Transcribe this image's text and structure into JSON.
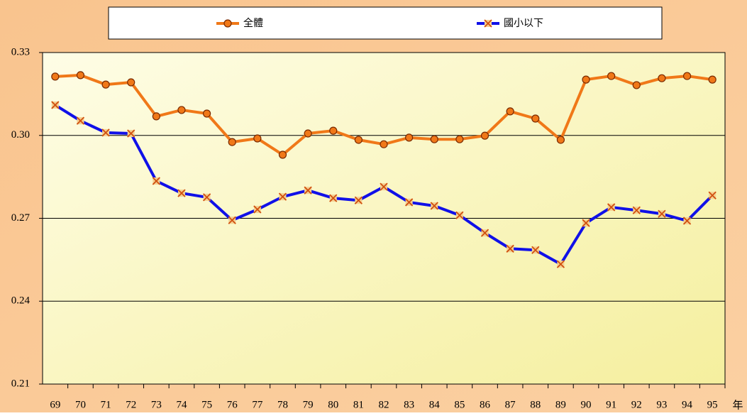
{
  "chart_data": {
    "type": "line",
    "categories": [
      "69",
      "70",
      "71",
      "72",
      "73",
      "74",
      "75",
      "76",
      "77",
      "78",
      "79",
      "80",
      "81",
      "82",
      "83",
      "84",
      "85",
      "86",
      "87",
      "88",
      "89",
      "90",
      "91",
      "92",
      "93",
      "94",
      "95"
    ],
    "x_label": "年",
    "series": [
      {
        "name": "全體",
        "color": "#f07818",
        "marker": "circle",
        "values": [
          0.3213,
          0.3218,
          0.3184,
          0.3192,
          0.3069,
          0.3092,
          0.3079,
          0.2976,
          0.2989,
          0.293,
          0.3007,
          0.3017,
          0.2984,
          0.2968,
          0.2992,
          0.2986,
          0.2986,
          0.2999,
          0.3087,
          0.3061,
          0.2984,
          0.3202,
          0.3215,
          0.3182,
          0.3207,
          0.3215,
          0.3202
        ]
      },
      {
        "name": "國小以下",
        "color": "#1010e8",
        "marker": "x",
        "values": [
          0.311,
          0.3053,
          0.301,
          0.3007,
          0.2835,
          0.2791,
          0.2776,
          0.2693,
          0.2732,
          0.2778,
          0.2801,
          0.2773,
          0.2765,
          0.2814,
          0.2758,
          0.2745,
          0.2711,
          0.2647,
          0.259,
          0.2585,
          0.2534,
          0.2683,
          0.274,
          0.2729,
          0.2716,
          0.2691,
          0.2783
        ]
      }
    ],
    "ylim": [
      0.21,
      0.33
    ],
    "yticks": [
      0.21,
      0.24,
      0.27,
      {
        "value": 0.3,
        "label": "0.30"
      },
      0.33
    ],
    "grid": true
  }
}
